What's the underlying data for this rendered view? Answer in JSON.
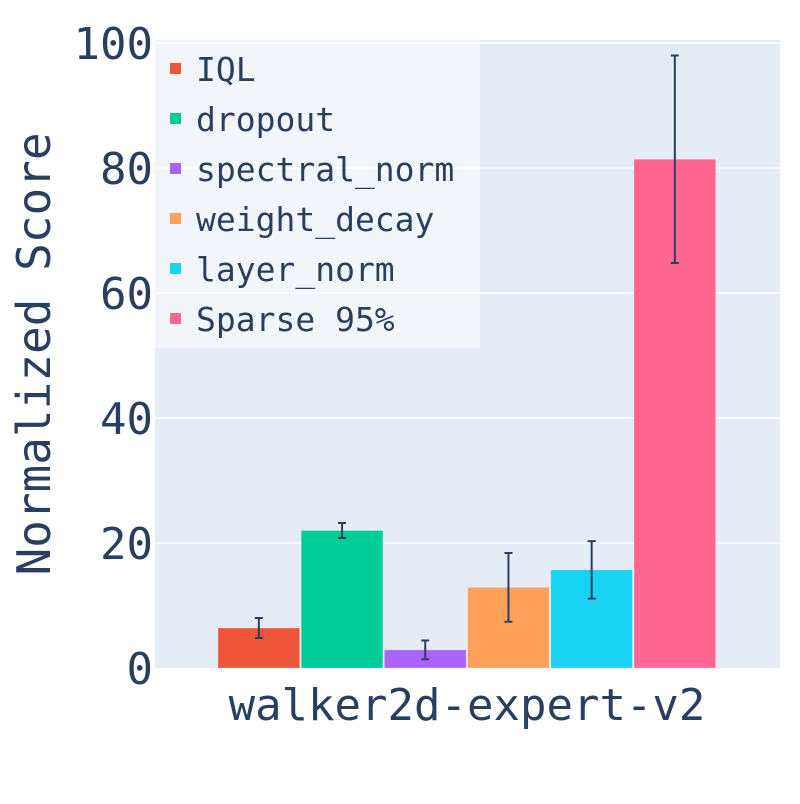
{
  "chart_data": {
    "type": "bar",
    "title": "",
    "xlabel": "",
    "ylabel": "Normalized Score",
    "categories": [
      "walker2d-expert-v2"
    ],
    "ylim": [
      0,
      100
    ],
    "yticks": [
      0,
      20,
      40,
      60,
      80,
      100
    ],
    "grid": true,
    "legend_position": "top-left",
    "series": [
      {
        "name": "IQL",
        "values": [
          6.4
        ],
        "error": [
          1.6
        ],
        "color": "#EF553B"
      },
      {
        "name": "dropout",
        "values": [
          22.0
        ],
        "error": [
          1.2
        ],
        "color": "#00CC96"
      },
      {
        "name": "spectral_norm",
        "values": [
          2.9
        ],
        "error": [
          1.5
        ],
        "color": "#AB63FA"
      },
      {
        "name": "weight_decay",
        "values": [
          12.9
        ],
        "error": [
          5.5
        ],
        "color": "#FFA15A"
      },
      {
        "name": "layer_norm",
        "values": [
          15.7
        ],
        "error": [
          4.6
        ],
        "color": "#19D3F3"
      },
      {
        "name": "Sparse 95%",
        "values": [
          81.4
        ],
        "error": [
          16.6
        ],
        "color": "#FF6692"
      }
    ]
  }
}
